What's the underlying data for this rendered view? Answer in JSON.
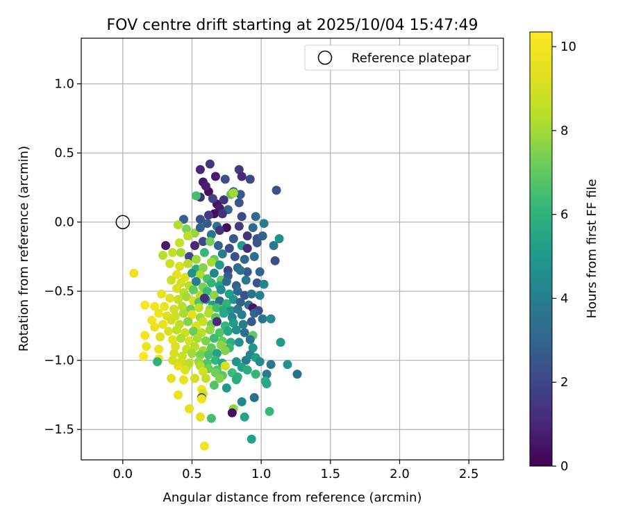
{
  "chart_data": {
    "type": "scatter",
    "title": "FOV centre drift starting at 2025/10/04 15:47:49",
    "xlabel": "Angular distance from reference (arcmin)",
    "ylabel": "Rotation from reference (arcmin)",
    "xlim": [
      -0.3,
      2.75
    ],
    "ylim": [
      -1.72,
      1.33
    ],
    "xticks": [
      0.0,
      0.5,
      1.0,
      1.5,
      2.0,
      2.5
    ],
    "xtick_labels": [
      "0.0",
      "0.5",
      "1.0",
      "1.5",
      "2.0",
      "2.5"
    ],
    "yticks": [
      1.0,
      0.5,
      0.0,
      -0.5,
      -1.0,
      -1.5
    ],
    "ytick_labels": [
      "1.0",
      "0.5",
      "0.0",
      "−0.5",
      "−1.0",
      "−1.5"
    ],
    "grid": true,
    "legend": {
      "placement": "top-right",
      "entries": [
        {
          "label": "Reference platepar",
          "marker": "open-circle"
        }
      ]
    },
    "reference_point": {
      "x": 0.0,
      "y": 0.0
    },
    "colorbar": {
      "label": "Hours from first FF file",
      "colormap": "viridis",
      "range": [
        0,
        10.35
      ],
      "ticks": [
        0,
        2,
        4,
        6,
        8,
        10
      ],
      "tick_labels": [
        "0",
        "2",
        "4",
        "6",
        "8",
        "10"
      ]
    },
    "points": [
      [
        0.56,
        0.38,
        1.0
      ],
      [
        0.63,
        0.42,
        1.5
      ],
      [
        0.67,
        0.33,
        0.8
      ],
      [
        0.84,
        0.38,
        1.6
      ],
      [
        0.86,
        0.33,
        1.2
      ],
      [
        0.92,
        0.31,
        2.0
      ],
      [
        0.58,
        0.29,
        0.6
      ],
      [
        0.62,
        0.22,
        0.4
      ],
      [
        0.74,
        0.31,
        2.2
      ],
      [
        0.8,
        0.22,
        3.0
      ],
      [
        0.85,
        0.2,
        2.6
      ],
      [
        1.11,
        0.23,
        2.3
      ],
      [
        0.6,
        0.26,
        0.8
      ],
      [
        0.68,
        0.13,
        0.5
      ],
      [
        0.73,
        0.16,
        1.4
      ],
      [
        0.78,
        0.2,
        7.0
      ],
      [
        0.8,
        0.21,
        8.0
      ],
      [
        0.56,
        0.18,
        1.2
      ],
      [
        0.65,
        0.17,
        1.9
      ],
      [
        0.7,
        0.1,
        0.7
      ],
      [
        0.84,
        0.14,
        2.5
      ],
      [
        0.53,
        0.19,
        6.5
      ],
      [
        0.76,
        0.09,
        2.9
      ],
      [
        0.66,
        0.06,
        0.3
      ],
      [
        0.56,
        0.02,
        2.3
      ],
      [
        0.62,
        0.05,
        1.6
      ],
      [
        0.72,
        0.06,
        1.3
      ],
      [
        0.86,
        0.04,
        2.1
      ],
      [
        0.96,
        0.04,
        3.2
      ],
      [
        1.02,
        -0.01,
        3.9
      ],
      [
        0.44,
        0.02,
        2.8
      ],
      [
        0.61,
        -0.01,
        2.7
      ],
      [
        0.68,
        -0.03,
        3.4
      ],
      [
        0.75,
        -0.04,
        0.2
      ],
      [
        0.84,
        -0.03,
        1.7
      ],
      [
        0.94,
        -0.04,
        3.1
      ],
      [
        0.4,
        -0.02,
        8.2
      ],
      [
        0.46,
        -0.05,
        7.5
      ],
      [
        0.52,
        -0.08,
        7.8
      ],
      [
        0.56,
        -0.04,
        2.8
      ],
      [
        0.64,
        -0.09,
        3.6
      ],
      [
        0.7,
        -0.06,
        1.3
      ],
      [
        0.8,
        -0.12,
        2.6
      ],
      [
        0.9,
        -0.1,
        1.4
      ],
      [
        0.97,
        -0.12,
        2.4
      ],
      [
        1.01,
        -0.1,
        2.9
      ],
      [
        0.31,
        -0.17,
        0.7
      ],
      [
        0.41,
        -0.15,
        8.7
      ],
      [
        0.47,
        -0.1,
        8.5
      ],
      [
        0.52,
        -0.17,
        1.0
      ],
      [
        0.58,
        -0.14,
        2.0
      ],
      [
        0.63,
        -0.14,
        7.3
      ],
      [
        0.69,
        -0.17,
        3.0
      ],
      [
        0.77,
        -0.19,
        2.2
      ],
      [
        0.86,
        -0.17,
        5.1
      ],
      [
        0.9,
        -0.19,
        1.2
      ],
      [
        0.97,
        -0.15,
        2.5
      ],
      [
        1.09,
        -0.17,
        3.7
      ],
      [
        1.13,
        -0.12,
        4.6
      ],
      [
        0.29,
        -0.24,
        8.3
      ],
      [
        0.36,
        -0.22,
        8.6
      ],
      [
        0.42,
        -0.22,
        8.0
      ],
      [
        0.48,
        -0.25,
        2.0
      ],
      [
        0.53,
        -0.27,
        7.9
      ],
      [
        0.59,
        -0.22,
        6.2
      ],
      [
        0.66,
        -0.27,
        7.1
      ],
      [
        0.72,
        -0.23,
        3.9
      ],
      [
        0.81,
        -0.25,
        2.3
      ],
      [
        0.88,
        -0.27,
        3.1
      ],
      [
        0.95,
        -0.25,
        3.4
      ],
      [
        1.1,
        -0.28,
        2.2
      ],
      [
        0.34,
        -0.3,
        8.9
      ],
      [
        0.41,
        -0.32,
        9.2
      ],
      [
        0.47,
        -0.3,
        8.4
      ],
      [
        0.53,
        -0.34,
        5.8
      ],
      [
        0.58,
        -0.33,
        7.6
      ],
      [
        0.64,
        -0.29,
        8.0
      ],
      [
        0.7,
        -0.31,
        5.0
      ],
      [
        0.76,
        -0.35,
        1.8
      ],
      [
        0.83,
        -0.33,
        3.3
      ],
      [
        0.9,
        -0.36,
        2.6
      ],
      [
        0.08,
        -0.37,
        9.8
      ],
      [
        0.39,
        -0.38,
        9.5
      ],
      [
        0.45,
        -0.4,
        9.3
      ],
      [
        0.5,
        -0.37,
        4.7
      ],
      [
        0.56,
        -0.38,
        8.1
      ],
      [
        0.61,
        -0.41,
        6.6
      ],
      [
        0.66,
        -0.37,
        4.3
      ],
      [
        0.71,
        -0.42,
        7.2
      ],
      [
        0.76,
        -0.39,
        2.7
      ],
      [
        0.85,
        -0.35,
        3.5
      ],
      [
        0.99,
        -0.36,
        3.0
      ],
      [
        0.35,
        -0.42,
        8.8
      ],
      [
        0.42,
        -0.44,
        9.0
      ],
      [
        0.48,
        -0.46,
        8.3
      ],
      [
        0.53,
        -0.43,
        4.0
      ],
      [
        0.58,
        -0.47,
        7.4
      ],
      [
        0.64,
        -0.44,
        6.1
      ],
      [
        0.7,
        -0.46,
        5.5
      ],
      [
        0.75,
        -0.43,
        3.2
      ],
      [
        0.82,
        -0.46,
        2.8
      ],
      [
        0.89,
        -0.42,
        3.7
      ],
      [
        0.97,
        -0.44,
        2.5
      ],
      [
        1.02,
        -0.45,
        4.2
      ],
      [
        0.39,
        -0.48,
        9.1
      ],
      [
        0.44,
        -0.51,
        8.5
      ],
      [
        0.51,
        -0.49,
        7.0
      ],
      [
        0.56,
        -0.53,
        8.2
      ],
      [
        0.61,
        -0.5,
        6.3
      ],
      [
        0.66,
        -0.53,
        7.7
      ],
      [
        0.71,
        -0.49,
        4.5
      ],
      [
        0.77,
        -0.52,
        5.2
      ],
      [
        0.83,
        -0.5,
        3.1
      ],
      [
        0.88,
        -0.53,
        2.4
      ],
      [
        0.93,
        -0.52,
        3.6
      ],
      [
        0.99,
        -0.53,
        4.1
      ],
      [
        0.28,
        -0.52,
        9.6
      ],
      [
        0.34,
        -0.55,
        9.4
      ],
      [
        0.4,
        -0.56,
        8.7
      ],
      [
        0.46,
        -0.54,
        8.0
      ],
      [
        0.51,
        -0.57,
        9.1
      ],
      [
        0.55,
        -0.58,
        6.8
      ],
      [
        0.6,
        -0.56,
        4.4
      ],
      [
        0.65,
        -0.6,
        5.3
      ],
      [
        0.7,
        -0.57,
        3.4
      ],
      [
        0.75,
        -0.59,
        6.0
      ],
      [
        0.8,
        -0.56,
        4.8
      ],
      [
        0.85,
        -0.58,
        2.9
      ],
      [
        0.91,
        -0.6,
        3.3
      ],
      [
        0.16,
        -0.6,
        10.1
      ],
      [
        0.23,
        -0.61,
        9.9
      ],
      [
        0.3,
        -0.61,
        9.7
      ],
      [
        0.37,
        -0.63,
        8.9
      ],
      [
        0.43,
        -0.61,
        8.4
      ],
      [
        0.49,
        -0.63,
        7.3
      ],
      [
        0.55,
        -0.62,
        8.6
      ],
      [
        0.59,
        -0.55,
        1.3
      ],
      [
        0.63,
        -0.63,
        7.8
      ],
      [
        0.68,
        -0.62,
        6.5
      ],
      [
        0.73,
        -0.63,
        5.7
      ],
      [
        0.78,
        -0.64,
        4.9
      ],
      [
        0.83,
        -0.63,
        3.8
      ],
      [
        0.94,
        -0.62,
        0.6
      ],
      [
        0.98,
        -0.64,
        2.3
      ],
      [
        0.26,
        -0.66,
        9.8
      ],
      [
        0.32,
        -0.68,
        9.3
      ],
      [
        0.38,
        -0.68,
        8.8
      ],
      [
        0.44,
        -0.66,
        8.1
      ],
      [
        0.5,
        -0.67,
        9.5
      ],
      [
        0.56,
        -0.69,
        7.9
      ],
      [
        0.62,
        -0.66,
        8.3
      ],
      [
        0.67,
        -0.69,
        6.9
      ],
      [
        0.73,
        -0.66,
        5.6
      ],
      [
        0.79,
        -0.69,
        4.2
      ],
      [
        0.86,
        -0.67,
        4.0
      ],
      [
        0.95,
        -0.66,
        3.0
      ],
      [
        0.21,
        -0.71,
        10.0
      ],
      [
        0.29,
        -0.74,
        9.6
      ],
      [
        0.35,
        -0.71,
        9.0
      ],
      [
        0.41,
        -0.74,
        8.5
      ],
      [
        0.47,
        -0.72,
        7.6
      ],
      [
        0.53,
        -0.75,
        9.2
      ],
      [
        0.58,
        -0.72,
        8.7
      ],
      [
        0.64,
        -0.74,
        7.4
      ],
      [
        0.68,
        -0.72,
        1.1
      ],
      [
        0.74,
        -0.75,
        6.2
      ],
      [
        0.8,
        -0.73,
        5.1
      ],
      [
        0.87,
        -0.74,
        3.9
      ],
      [
        0.93,
        -0.72,
        2.6
      ],
      [
        1.01,
        -0.7,
        3.5
      ],
      [
        1.07,
        -0.7,
        4.4
      ],
      [
        0.23,
        -0.76,
        9.7
      ],
      [
        0.33,
        -0.79,
        9.1
      ],
      [
        0.39,
        -0.78,
        8.6
      ],
      [
        0.45,
        -0.8,
        8.9
      ],
      [
        0.51,
        -0.79,
        7.2
      ],
      [
        0.57,
        -0.8,
        8.4
      ],
      [
        0.63,
        -0.78,
        7.8
      ],
      [
        0.7,
        -0.8,
        6.7
      ],
      [
        0.76,
        -0.79,
        5.5
      ],
      [
        0.82,
        -0.78,
        4.7
      ],
      [
        0.88,
        -0.8,
        3.4
      ],
      [
        0.94,
        -0.82,
        7.0
      ],
      [
        0.16,
        -0.82,
        9.9
      ],
      [
        0.27,
        -0.83,
        9.4
      ],
      [
        0.36,
        -0.85,
        9.5
      ],
      [
        0.42,
        -0.84,
        8.2
      ],
      [
        0.48,
        -0.86,
        9.0
      ],
      [
        0.54,
        -0.84,
        8.1
      ],
      [
        0.6,
        -0.86,
        7.5
      ],
      [
        0.66,
        -0.84,
        6.4
      ],
      [
        0.72,
        -0.86,
        7.1
      ],
      [
        0.78,
        -0.87,
        5.9
      ],
      [
        0.84,
        -0.87,
        4.6
      ],
      [
        0.92,
        -0.85,
        3.6
      ],
      [
        1.14,
        -0.87,
        5.0
      ],
      [
        0.17,
        -0.9,
        9.8
      ],
      [
        0.38,
        -0.9,
        9.2
      ],
      [
        0.46,
        -0.92,
        8.8
      ],
      [
        0.52,
        -0.9,
        8.3
      ],
      [
        0.58,
        -0.93,
        7.9
      ],
      [
        0.64,
        -0.91,
        7.0
      ],
      [
        0.71,
        -0.89,
        7.7
      ],
      [
        0.77,
        -0.91,
        6.3
      ],
      [
        0.94,
        -0.91,
        4.9
      ],
      [
        0.26,
        -0.92,
        9.6
      ],
      [
        0.37,
        -0.95,
        9.1
      ],
      [
        0.43,
        -0.97,
        8.7
      ],
      [
        0.5,
        -0.95,
        8.0
      ],
      [
        0.56,
        -0.96,
        7.4
      ],
      [
        0.62,
        -0.96,
        6.6
      ],
      [
        0.68,
        -0.95,
        5.4
      ],
      [
        0.74,
        -0.93,
        7.6
      ],
      [
        0.92,
        -0.96,
        4.3
      ],
      [
        0.96,
        -0.98,
        5.2
      ],
      [
        0.15,
        -0.97,
        10.2
      ],
      [
        0.26,
        -0.99,
        9.7
      ],
      [
        0.36,
        -1.0,
        9.0
      ],
      [
        0.42,
        -1.01,
        8.9
      ],
      [
        0.48,
        -1.02,
        8.4
      ],
      [
        0.55,
        -1.01,
        7.8
      ],
      [
        0.61,
        -1.02,
        6.7
      ],
      [
        0.67,
        -1.0,
        6.1
      ],
      [
        0.72,
        -1.02,
        5.6
      ],
      [
        0.82,
        -1.01,
        4.8
      ],
      [
        0.89,
        -1.0,
        3.9
      ],
      [
        0.99,
        -1.01,
        4.5
      ],
      [
        1.07,
        -1.03,
        3.7
      ],
      [
        1.19,
        -1.03,
        4.8
      ],
      [
        0.25,
        -1.01,
        6.0
      ],
      [
        0.4,
        -1.04,
        9.3
      ],
      [
        0.46,
        -1.05,
        8.6
      ],
      [
        0.56,
        -1.04,
        8.2
      ],
      [
        0.62,
        -1.06,
        7.2
      ],
      [
        0.68,
        -1.07,
        6.8
      ],
      [
        0.74,
        -1.04,
        9.1
      ],
      [
        0.86,
        -1.05,
        5.3
      ],
      [
        0.9,
        -1.07,
        5.8
      ],
      [
        0.45,
        -1.07,
        9.2
      ],
      [
        0.58,
        -1.08,
        9.0
      ],
      [
        0.67,
        -1.09,
        7.3
      ],
      [
        0.72,
        -1.11,
        6.9
      ],
      [
        0.79,
        -1.09,
        6.4
      ],
      [
        0.83,
        -1.12,
        5.9
      ],
      [
        0.96,
        -1.1,
        6.1
      ],
      [
        1.04,
        -1.1,
        3.8
      ],
      [
        1.26,
        -1.1,
        3.4
      ],
      [
        0.35,
        -1.13,
        9.4
      ],
      [
        0.52,
        -1.13,
        9.0
      ],
      [
        0.44,
        -1.14,
        9.6
      ],
      [
        0.6,
        -1.13,
        8.6
      ],
      [
        0.7,
        -1.13,
        7.5
      ],
      [
        0.82,
        -1.14,
        5.7
      ],
      [
        1.03,
        -1.15,
        5.8
      ],
      [
        1.04,
        -1.17,
        5.6
      ],
      [
        0.66,
        -1.18,
        6.8
      ],
      [
        0.75,
        -1.2,
        4.9
      ],
      [
        0.57,
        -1.21,
        9.9
      ],
      [
        0.58,
        -1.24,
        9.1
      ],
      [
        0.4,
        -1.25,
        9.7
      ],
      [
        0.57,
        -1.27,
        2.4
      ],
      [
        0.57,
        -1.28,
        9.8
      ],
      [
        0.95,
        -1.27,
        3.3
      ],
      [
        0.86,
        -1.3,
        4.4
      ],
      [
        0.8,
        -1.35,
        7.7
      ],
      [
        0.48,
        -1.35,
        9.5
      ],
      [
        1.06,
        -1.37,
        6.2
      ],
      [
        0.79,
        -1.38,
        0.4
      ],
      [
        0.56,
        -1.41,
        9.4
      ],
      [
        0.64,
        -1.42,
        6.5
      ],
      [
        0.88,
        -1.41,
        5.4
      ],
      [
        0.93,
        -1.57,
        5.3
      ],
      [
        0.59,
        -1.62,
        9.9
      ]
    ]
  }
}
